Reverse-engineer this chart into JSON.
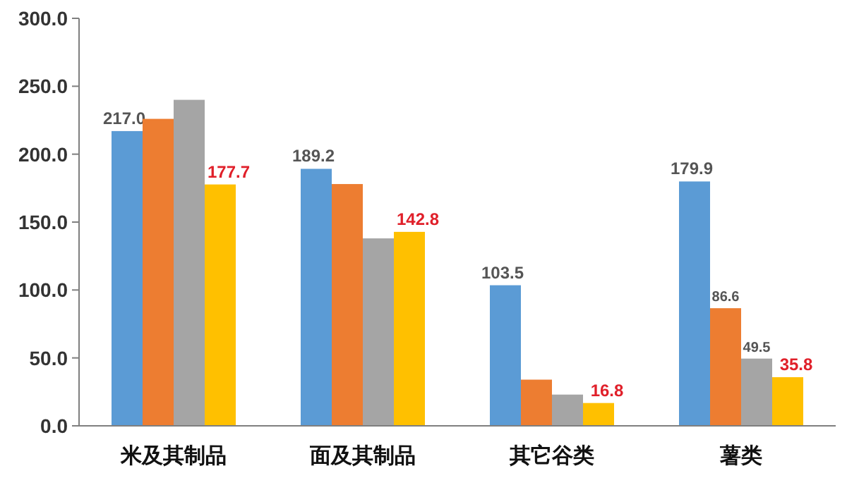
{
  "chart_data": {
    "type": "bar",
    "categories": [
      "米及其制品",
      "面及其制品",
      "其它谷类",
      "薯类"
    ],
    "series": [
      {
        "color": "#5b9bd5",
        "values": [
          217.0,
          189.2,
          103.5,
          179.9
        ],
        "value_labels": [
          "217.0",
          "189.2",
          "103.5",
          "179.9"
        ]
      },
      {
        "color": "#ed7d31",
        "values": [
          226,
          178,
          34,
          86.6
        ],
        "value_labels": [
          null,
          null,
          null,
          "86.6"
        ]
      },
      {
        "color": "#a5a5a5",
        "values": [
          240,
          138,
          23,
          49.5
        ],
        "value_labels": [
          null,
          null,
          null,
          "49.5"
        ]
      },
      {
        "color": "#ffc000",
        "values": [
          177.7,
          142.8,
          16.8,
          35.8
        ],
        "value_labels": [
          "177.7",
          "142.8",
          "16.8",
          "35.8"
        ]
      }
    ],
    "ylim": [
      0,
      300
    ],
    "yticks": [
      {
        "value": 0,
        "label": "0.0"
      },
      {
        "value": 50,
        "label": "50.0"
      },
      {
        "value": 100,
        "label": "100.0"
      },
      {
        "value": 150,
        "label": "150.0"
      },
      {
        "value": 200,
        "label": "200.0"
      },
      {
        "value": 250,
        "label": "250.0"
      },
      {
        "value": 300,
        "label": "300.0"
      }
    ],
    "grid": false
  }
}
